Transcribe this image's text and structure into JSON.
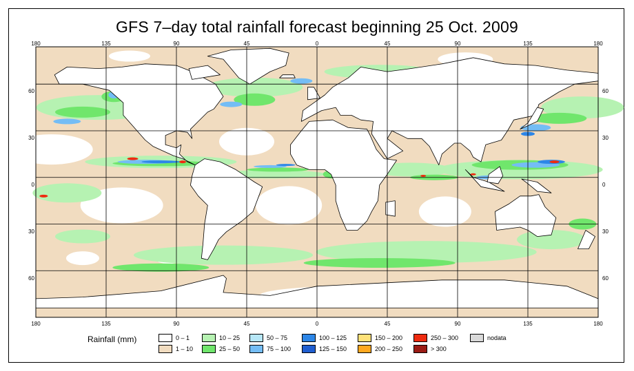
{
  "title": "GFS 7–day total rainfall forecast beginning 25 Oct. 2009",
  "longitude_ticks": [
    "180",
    "135",
    "90",
    "45",
    "0",
    "45",
    "90",
    "135",
    "180"
  ],
  "latitude_ticks": [
    "60",
    "30",
    "0",
    "30",
    "60"
  ],
  "legend": {
    "title": "Rainfall (mm)",
    "items": [
      {
        "label": "0 – 1",
        "color": "#ffffff"
      },
      {
        "label": "1 – 10",
        "color": "#f1dcc0"
      },
      {
        "label": "10 – 25",
        "color": "#b6f2b2"
      },
      {
        "label": "25 – 50",
        "color": "#70e66c"
      },
      {
        "label": "50 – 75",
        "color": "#b7e7f7"
      },
      {
        "label": "75 – 100",
        "color": "#74bdf5"
      },
      {
        "label": "100 – 125",
        "color": "#2d86e7"
      },
      {
        "label": "125 – 150",
        "color": "#1f5ed0"
      },
      {
        "label": "150 – 200",
        "color": "#ffe27a"
      },
      {
        "label": "200 – 250",
        "color": "#ffa81f"
      },
      {
        "label": "250 – 300",
        "color": "#ee2b10"
      },
      {
        "label": "> 300",
        "color": "#9b1c15"
      },
      {
        "label": "nodata",
        "color": "#d9d9d9"
      }
    ]
  },
  "colors": {
    "land": "#ffffff",
    "ocean_dry": "#ffffff",
    "light_rain": "#f1dcc0",
    "moderate_rain": "#b6f2b2",
    "heavy_rain": "#70e66c",
    "very_heavy_rain": "#74bdf5",
    "extreme_rain": "#2d86e7",
    "peak_rain": "#ee2b10",
    "grid": "#000000"
  }
}
